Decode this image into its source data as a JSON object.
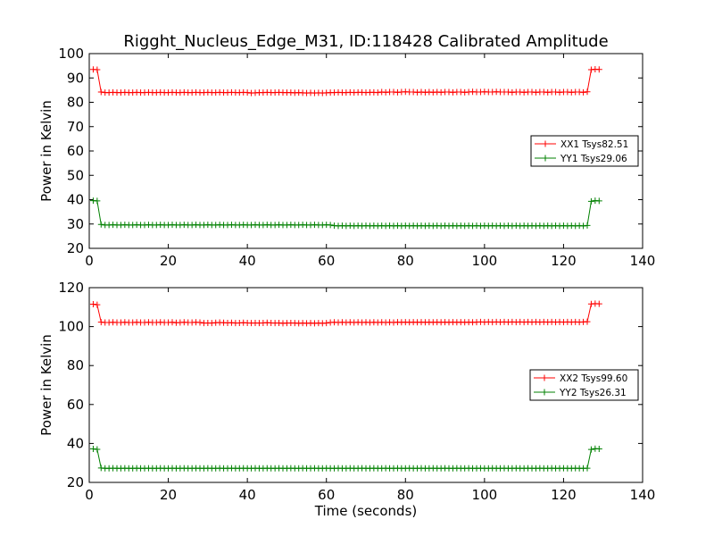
{
  "figure": {
    "title": "Rigght_Nucleus_Edge_M31, ID:118428 Calibrated Amplitude",
    "xlabel": "Time (seconds)"
  },
  "chart_data": [
    {
      "type": "line",
      "ylabel": "Power in Kelvin",
      "xlim": [
        0,
        140
      ],
      "ylim": [
        20,
        100
      ],
      "xticks": [
        "0",
        "20",
        "40",
        "60",
        "80",
        "100",
        "120",
        "140"
      ],
      "yticks": [
        "20",
        "30",
        "40",
        "50",
        "60",
        "70",
        "80",
        "90",
        "100"
      ],
      "legend_position": "center-right",
      "series": [
        {
          "name": "XX1 Tsys82.51",
          "color": "#ff0000",
          "marker": "plus",
          "x": [
            1,
            2,
            3,
            4,
            5,
            6,
            7,
            8,
            9,
            10,
            11,
            12,
            13,
            14,
            15,
            16,
            17,
            18,
            19,
            20,
            21,
            22,
            23,
            24,
            25,
            26,
            27,
            28,
            29,
            30,
            31,
            32,
            33,
            34,
            35,
            36,
            37,
            38,
            39,
            40,
            41,
            42,
            43,
            44,
            45,
            46,
            47,
            48,
            49,
            50,
            51,
            52,
            53,
            54,
            55,
            56,
            57,
            58,
            59,
            60,
            61,
            62,
            63,
            64,
            65,
            66,
            67,
            68,
            69,
            70,
            71,
            72,
            73,
            74,
            75,
            76,
            77,
            78,
            79,
            80,
            81,
            82,
            83,
            84,
            85,
            86,
            87,
            88,
            89,
            90,
            91,
            92,
            93,
            94,
            95,
            96,
            97,
            98,
            99,
            100,
            101,
            102,
            103,
            104,
            105,
            106,
            107,
            108,
            109,
            110,
            111,
            112,
            113,
            114,
            115,
            116,
            117,
            118,
            119,
            120,
            121,
            122,
            123,
            124,
            125,
            126,
            127,
            128,
            129
          ],
          "y": [
            93.5,
            93.4,
            84.2,
            84.0,
            84.0,
            84.1,
            84.0,
            84.0,
            84.1,
            84.0,
            84.0,
            84.1,
            84.0,
            84.0,
            84.1,
            84.0,
            84.0,
            84.1,
            84.0,
            84.0,
            84.1,
            84.0,
            84.0,
            84.1,
            84.0,
            84.0,
            84.1,
            84.0,
            84.0,
            84.1,
            84.0,
            84.0,
            84.1,
            84.0,
            84.0,
            84.1,
            84.0,
            84.0,
            84.1,
            84.0,
            83.8,
            83.9,
            84.0,
            84.0,
            84.1,
            84.0,
            84.0,
            84.1,
            84.0,
            84.0,
            84.0,
            83.9,
            84.0,
            83.9,
            83.8,
            83.9,
            83.8,
            83.9,
            83.8,
            83.9,
            84.0,
            84.0,
            84.1,
            84.0,
            84.0,
            84.1,
            84.0,
            84.1,
            84.1,
            84.0,
            84.1,
            84.1,
            84.0,
            84.2,
            84.1,
            84.2,
            84.2,
            84.1,
            84.2,
            84.3,
            84.2,
            84.2,
            84.1,
            84.2,
            84.1,
            84.2,
            84.1,
            84.2,
            84.1,
            84.2,
            84.2,
            84.1,
            84.2,
            84.2,
            84.1,
            84.2,
            84.3,
            84.2,
            84.2,
            84.3,
            84.2,
            84.2,
            84.3,
            84.2,
            84.2,
            84.2,
            84.1,
            84.2,
            84.2,
            84.1,
            84.2,
            84.2,
            84.1,
            84.2,
            84.2,
            84.1,
            84.2,
            84.2,
            84.1,
            84.2,
            84.2,
            84.1,
            84.2,
            84.2,
            84.1,
            84.3,
            93.4,
            93.6,
            93.5
          ]
        },
        {
          "name": "YY1 Tsys29.06",
          "color": "#008000",
          "marker": "plus",
          "x": [
            1,
            2,
            3,
            4,
            5,
            6,
            7,
            8,
            9,
            10,
            11,
            12,
            13,
            14,
            15,
            16,
            17,
            18,
            19,
            20,
            21,
            22,
            23,
            24,
            25,
            26,
            27,
            28,
            29,
            30,
            31,
            32,
            33,
            34,
            35,
            36,
            37,
            38,
            39,
            40,
            41,
            42,
            43,
            44,
            45,
            46,
            47,
            48,
            49,
            50,
            51,
            52,
            53,
            54,
            55,
            56,
            57,
            58,
            59,
            60,
            61,
            62,
            63,
            64,
            65,
            66,
            67,
            68,
            69,
            70,
            71,
            72,
            73,
            74,
            75,
            76,
            77,
            78,
            79,
            80,
            81,
            82,
            83,
            84,
            85,
            86,
            87,
            88,
            89,
            90,
            91,
            92,
            93,
            94,
            95,
            96,
            97,
            98,
            99,
            100,
            101,
            102,
            103,
            104,
            105,
            106,
            107,
            108,
            109,
            110,
            111,
            112,
            113,
            114,
            115,
            116,
            117,
            118,
            119,
            120,
            121,
            122,
            123,
            124,
            125,
            126,
            127,
            128,
            129
          ],
          "y": [
            39.6,
            39.5,
            29.8,
            29.6,
            29.6,
            29.7,
            29.6,
            29.6,
            29.7,
            29.6,
            29.6,
            29.7,
            29.6,
            29.6,
            29.7,
            29.6,
            29.6,
            29.7,
            29.6,
            29.6,
            29.7,
            29.6,
            29.6,
            29.7,
            29.6,
            29.6,
            29.7,
            29.6,
            29.6,
            29.7,
            29.6,
            29.6,
            29.7,
            29.6,
            29.6,
            29.7,
            29.6,
            29.6,
            29.7,
            29.6,
            29.6,
            29.7,
            29.6,
            29.6,
            29.7,
            29.6,
            29.6,
            29.7,
            29.6,
            29.6,
            29.7,
            29.6,
            29.6,
            29.7,
            29.6,
            29.6,
            29.7,
            29.6,
            29.6,
            29.7,
            29.6,
            29.3,
            29.2,
            29.3,
            29.2,
            29.3,
            29.2,
            29.3,
            29.2,
            29.3,
            29.2,
            29.3,
            29.2,
            29.3,
            29.2,
            29.3,
            29.2,
            29.3,
            29.2,
            29.3,
            29.2,
            29.3,
            29.2,
            29.3,
            29.2,
            29.3,
            29.2,
            29.3,
            29.2,
            29.3,
            29.2,
            29.3,
            29.2,
            29.3,
            29.2,
            29.3,
            29.2,
            29.3,
            29.2,
            29.3,
            29.2,
            29.3,
            29.2,
            29.3,
            29.2,
            29.3,
            29.2,
            29.3,
            29.2,
            29.3,
            29.2,
            29.3,
            29.2,
            29.3,
            29.2,
            29.3,
            29.2,
            29.3,
            29.2,
            29.3,
            29.2,
            29.3,
            29.2,
            29.3,
            29.2,
            29.4,
            39.3,
            39.6,
            39.5
          ]
        }
      ]
    },
    {
      "type": "line",
      "ylabel": "Power in Kelvin",
      "xlabel": "Time (seconds)",
      "xlim": [
        0,
        140
      ],
      "ylim": [
        20,
        120
      ],
      "xticks": [
        "0",
        "20",
        "40",
        "60",
        "80",
        "100",
        "120",
        "140"
      ],
      "yticks": [
        "20",
        "40",
        "60",
        "80",
        "100",
        "120"
      ],
      "legend_position": "center-right",
      "series": [
        {
          "name": "XX2 Tsys99.60",
          "color": "#ff0000",
          "marker": "plus",
          "x": [
            1,
            2,
            3,
            4,
            5,
            6,
            7,
            8,
            9,
            10,
            11,
            12,
            13,
            14,
            15,
            16,
            17,
            18,
            19,
            20,
            21,
            22,
            23,
            24,
            25,
            26,
            27,
            28,
            29,
            30,
            31,
            32,
            33,
            34,
            35,
            36,
            37,
            38,
            39,
            40,
            41,
            42,
            43,
            44,
            45,
            46,
            47,
            48,
            49,
            50,
            51,
            52,
            53,
            54,
            55,
            56,
            57,
            58,
            59,
            60,
            61,
            62,
            63,
            64,
            65,
            66,
            67,
            68,
            69,
            70,
            71,
            72,
            73,
            74,
            75,
            76,
            77,
            78,
            79,
            80,
            81,
            82,
            83,
            84,
            85,
            86,
            87,
            88,
            89,
            90,
            91,
            92,
            93,
            94,
            95,
            96,
            97,
            98,
            99,
            100,
            101,
            102,
            103,
            104,
            105,
            106,
            107,
            108,
            109,
            110,
            111,
            112,
            113,
            114,
            115,
            116,
            117,
            118,
            119,
            120,
            121,
            122,
            123,
            124,
            125,
            126,
            127,
            128,
            129
          ],
          "y": [
            111.5,
            111.2,
            102.3,
            102.1,
            102.1,
            102.2,
            102.1,
            102.1,
            102.2,
            102.1,
            102.1,
            102.2,
            102.1,
            102.1,
            102.2,
            102.1,
            102.1,
            102.2,
            102.1,
            102.1,
            102.2,
            102.0,
            102.1,
            102.2,
            102.1,
            102.1,
            102.2,
            102.1,
            101.8,
            101.9,
            101.8,
            102.0,
            102.1,
            102.0,
            101.9,
            102.0,
            101.8,
            101.9,
            102.0,
            101.9,
            101.8,
            101.9,
            101.8,
            101.9,
            102.0,
            101.9,
            101.8,
            101.9,
            101.7,
            101.8,
            101.9,
            101.8,
            101.7,
            101.8,
            101.7,
            101.8,
            101.7,
            101.8,
            101.7,
            101.8,
            102.1,
            102.2,
            102.1,
            102.2,
            102.1,
            102.2,
            102.1,
            102.2,
            102.1,
            102.2,
            102.1,
            102.2,
            102.1,
            102.2,
            102.1,
            102.2,
            102.1,
            102.3,
            102.2,
            102.3,
            102.2,
            102.3,
            102.2,
            102.3,
            102.2,
            102.3,
            102.2,
            102.3,
            102.2,
            102.3,
            102.2,
            102.3,
            102.2,
            102.3,
            102.2,
            102.3,
            102.2,
            102.3,
            102.4,
            102.3,
            102.4,
            102.3,
            102.4,
            102.3,
            102.4,
            102.3,
            102.4,
            102.3,
            102.4,
            102.3,
            102.4,
            102.3,
            102.4,
            102.3,
            102.4,
            102.3,
            102.4,
            102.3,
            102.4,
            102.3,
            102.4,
            102.3,
            102.4,
            102.3,
            102.4,
            102.5,
            111.6,
            111.8,
            111.7
          ]
        },
        {
          "name": "YY2 Tsys26.31",
          "color": "#008000",
          "marker": "plus",
          "x": [
            1,
            2,
            3,
            4,
            5,
            6,
            7,
            8,
            9,
            10,
            11,
            12,
            13,
            14,
            15,
            16,
            17,
            18,
            19,
            20,
            21,
            22,
            23,
            24,
            25,
            26,
            27,
            28,
            29,
            30,
            31,
            32,
            33,
            34,
            35,
            36,
            37,
            38,
            39,
            40,
            41,
            42,
            43,
            44,
            45,
            46,
            47,
            48,
            49,
            50,
            51,
            52,
            53,
            54,
            55,
            56,
            57,
            58,
            59,
            60,
            61,
            62,
            63,
            64,
            65,
            66,
            67,
            68,
            69,
            70,
            71,
            72,
            73,
            74,
            75,
            76,
            77,
            78,
            79,
            80,
            81,
            82,
            83,
            84,
            85,
            86,
            87,
            88,
            89,
            90,
            91,
            92,
            93,
            94,
            95,
            96,
            97,
            98,
            99,
            100,
            101,
            102,
            103,
            104,
            105,
            106,
            107,
            108,
            109,
            110,
            111,
            112,
            113,
            114,
            115,
            116,
            117,
            118,
            119,
            120,
            121,
            122,
            123,
            124,
            125,
            126,
            127,
            128,
            129
          ],
          "y": [
            37.2,
            37.0,
            27.4,
            27.2,
            27.2,
            27.3,
            27.2,
            27.2,
            27.3,
            27.2,
            27.2,
            27.3,
            27.2,
            27.2,
            27.3,
            27.2,
            27.2,
            27.3,
            27.2,
            27.2,
            27.3,
            27.2,
            27.2,
            27.3,
            27.2,
            27.2,
            27.3,
            27.2,
            27.2,
            27.3,
            27.2,
            27.2,
            27.3,
            27.2,
            27.2,
            27.3,
            27.2,
            27.2,
            27.3,
            27.2,
            27.2,
            27.3,
            27.2,
            27.2,
            27.3,
            27.2,
            27.2,
            27.3,
            27.2,
            27.2,
            27.3,
            27.2,
            27.2,
            27.3,
            27.2,
            27.2,
            27.3,
            27.2,
            27.2,
            27.3,
            27.2,
            27.2,
            27.3,
            27.2,
            27.2,
            27.3,
            27.2,
            27.2,
            27.3,
            27.2,
            27.2,
            27.3,
            27.2,
            27.2,
            27.3,
            27.2,
            27.2,
            27.3,
            27.2,
            27.2,
            27.3,
            27.2,
            27.2,
            27.3,
            27.2,
            27.2,
            27.3,
            27.2,
            27.2,
            27.3,
            27.2,
            27.2,
            27.3,
            27.2,
            27.2,
            27.3,
            27.2,
            27.2,
            27.3,
            27.2,
            27.2,
            27.3,
            27.2,
            27.2,
            27.3,
            27.2,
            27.2,
            27.3,
            27.2,
            27.2,
            27.3,
            27.2,
            27.2,
            27.3,
            27.2,
            27.2,
            27.3,
            27.2,
            27.2,
            27.3,
            27.2,
            27.2,
            27.3,
            27.2,
            27.2,
            27.3,
            36.9,
            37.3,
            37.2
          ]
        }
      ]
    }
  ]
}
